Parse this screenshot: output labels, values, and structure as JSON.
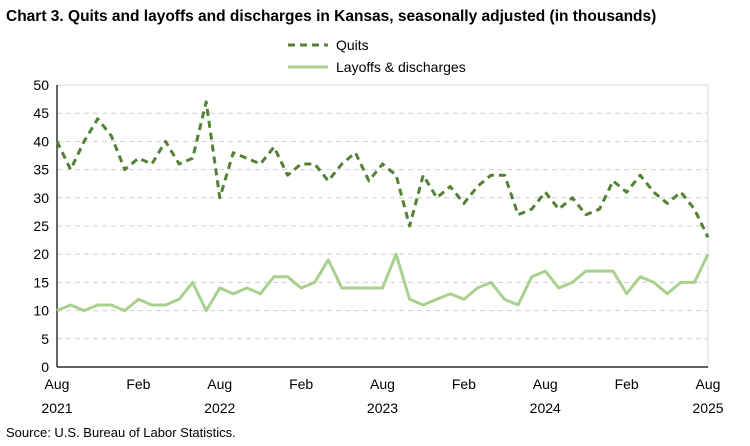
{
  "chart_data": {
    "type": "line",
    "title": "Chart 3. Quits and layoffs and discharges in Kansas, seasonally adjusted (in thousands)",
    "source": "Source: U.S. Bureau of Labor Statistics.",
    "x_start": "Aug 2021",
    "x_end": "Aug 2025",
    "x_tick_labels": [
      {
        "month": "Aug",
        "year": "2021"
      },
      {
        "month": "Feb",
        "year": ""
      },
      {
        "month": "Aug",
        "year": "2022"
      },
      {
        "month": "Feb",
        "year": ""
      },
      {
        "month": "Aug",
        "year": "2023"
      },
      {
        "month": "Feb",
        "year": ""
      },
      {
        "month": "Aug",
        "year": "2024"
      },
      {
        "month": "Feb",
        "year": ""
      },
      {
        "month": "Aug",
        "year": "2025"
      }
    ],
    "ylim": [
      0,
      50
    ],
    "y_ticks": [
      0,
      5,
      10,
      15,
      20,
      25,
      30,
      35,
      40,
      45,
      50
    ],
    "grid": "horizontal dashed",
    "legend_position": "top-center",
    "series": [
      {
        "name": "Quits",
        "color": "#538135",
        "style": "dashed",
        "values": [
          40,
          35,
          40,
          44,
          41,
          35,
          37,
          36,
          40,
          36,
          37,
          47,
          30,
          38,
          37,
          36,
          39,
          34,
          36,
          36,
          33,
          36,
          38,
          33,
          36,
          34,
          25,
          34,
          30,
          32,
          29,
          32,
          34,
          34,
          27,
          28,
          31,
          28,
          30,
          27,
          28,
          33,
          31,
          34,
          31,
          29,
          31,
          28,
          23
        ]
      },
      {
        "name": "Layoffs & discharges",
        "color": "#A9D18E",
        "style": "solid",
        "values": [
          10,
          11,
          10,
          11,
          11,
          10,
          12,
          11,
          11,
          12,
          15,
          10,
          14,
          13,
          14,
          13,
          16,
          16,
          14,
          15,
          19,
          14,
          14,
          14,
          14,
          20,
          12,
          11,
          12,
          13,
          12,
          14,
          15,
          12,
          11,
          16,
          17,
          14,
          15,
          17,
          17,
          17,
          13,
          16,
          15,
          13,
          15,
          15,
          20
        ]
      }
    ]
  }
}
